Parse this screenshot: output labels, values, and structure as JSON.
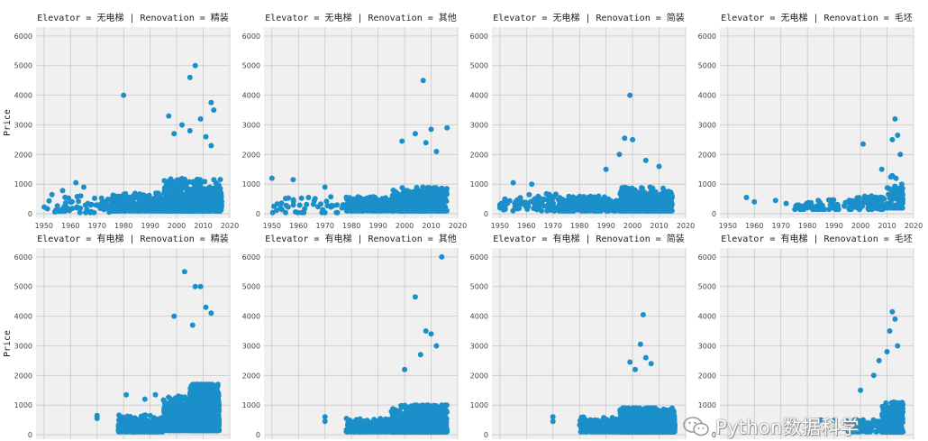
{
  "chart_data": {
    "type": "scatter",
    "point_color": "#1a8fc9",
    "background": "#f0f0f0",
    "grid": true,
    "xlim": [
      1947,
      2020
    ],
    "ylim": [
      -150,
      6300
    ],
    "xticks": [
      1950,
      1960,
      1970,
      1980,
      1990,
      2000,
      2010,
      2020
    ],
    "yticks": [
      0,
      1000,
      2000,
      3000,
      4000,
      5000,
      6000
    ],
    "ylabel": "Price",
    "panels": [
      {
        "title": "Elevator = 无电梯 | Renovation = 精装",
        "elevator": "无电梯",
        "renovation": "精装",
        "x_ticks_visible": true,
        "density": [
          [
            1950,
            1975,
            60,
            40,
            250,
            650,
            300
          ],
          [
            1975,
            1995,
            350,
            100,
            250,
            700,
            350
          ],
          [
            1995,
            2017,
            650,
            100,
            300,
            1200,
            700
          ]
        ],
        "points": [
          [
            1980,
            4000
          ],
          [
            2005,
            4600
          ],
          [
            2007,
            5000
          ],
          [
            2013,
            3750
          ],
          [
            2014,
            3500
          ],
          [
            1997,
            3300
          ],
          [
            2002,
            3000
          ],
          [
            2009,
            3200
          ],
          [
            2011,
            2600
          ],
          [
            2013,
            2300
          ],
          [
            1999,
            2700
          ],
          [
            2005,
            2800
          ],
          [
            1957,
            780
          ],
          [
            1962,
            1050
          ],
          [
            1965,
            900
          ],
          [
            1953,
            650
          ],
          [
            1972,
            400
          ]
        ]
      },
      {
        "title": "Elevator = 无电梯 | Renovation = 其他",
        "elevator": "无电梯",
        "renovation": "其他",
        "x_ticks_visible": true,
        "density": [
          [
            1950,
            1978,
            45,
            40,
            250,
            700,
            350
          ],
          [
            1978,
            1995,
            250,
            100,
            250,
            600,
            300
          ],
          [
            1995,
            2016,
            450,
            100,
            300,
            900,
            500
          ]
        ],
        "points": [
          [
            2007,
            4500
          ],
          [
            2016,
            2900
          ],
          [
            2010,
            2850
          ],
          [
            2004,
            2700
          ],
          [
            1999,
            2450
          ],
          [
            2012,
            2100
          ],
          [
            2008,
            2400
          ],
          [
            1950,
            1200
          ],
          [
            1958,
            1150
          ],
          [
            1970,
            900
          ]
        ]
      },
      {
        "title": "Elevator = 无电梯 | Renovation = 简装",
        "elevator": "无电梯",
        "renovation": "简装",
        "x_ticks_visible": true,
        "density": [
          [
            1950,
            1972,
            80,
            100,
            300,
            700,
            300
          ],
          [
            1972,
            1995,
            300,
            100,
            250,
            600,
            300
          ],
          [
            1995,
            2015,
            450,
            100,
            300,
            900,
            500
          ]
        ],
        "points": [
          [
            1999,
            4000
          ],
          [
            1997,
            2550
          ],
          [
            2000,
            2500
          ],
          [
            1995,
            2000
          ],
          [
            2005,
            1800
          ],
          [
            2010,
            1600
          ],
          [
            1990,
            1500
          ],
          [
            1955,
            1050
          ],
          [
            1962,
            1000
          ]
        ]
      },
      {
        "title": "Elevator = 无电梯 | Renovation = 毛坯",
        "elevator": "无电梯",
        "renovation": "毛坯",
        "x_ticks_visible": true,
        "density": [
          [
            1975,
            1998,
            80,
            150,
            250,
            500,
            200
          ],
          [
            1998,
            2010,
            70,
            150,
            300,
            600,
            300
          ],
          [
            2010,
            2016,
            100,
            200,
            400,
            1300,
            700
          ]
        ],
        "points": [
          [
            2013,
            3200
          ],
          [
            2001,
            2350
          ],
          [
            2012,
            2500
          ],
          [
            2014,
            2650
          ],
          [
            2015,
            2000
          ],
          [
            2008,
            1500
          ],
          [
            1957,
            550
          ],
          [
            1960,
            400
          ],
          [
            1968,
            450
          ],
          [
            1972,
            350
          ]
        ]
      },
      {
        "title": "Elevator = 有电梯 | Renovation = 精装",
        "elevator": "有电梯",
        "renovation": "精装",
        "x_ticks_visible": false,
        "density": [
          [
            1978,
            1995,
            300,
            100,
            250,
            700,
            300
          ],
          [
            1995,
            2005,
            700,
            150,
            300,
            1300,
            800
          ],
          [
            2005,
            2016,
            1400,
            150,
            300,
            1700,
            1400
          ]
        ],
        "points": [
          [
            2003,
            5500
          ],
          [
            2007,
            5000
          ],
          [
            2009,
            5000
          ],
          [
            2011,
            4300
          ],
          [
            1999,
            4000
          ],
          [
            2013,
            4100
          ],
          [
            2006,
            3700
          ],
          [
            1981,
            1350
          ],
          [
            1988,
            1200
          ],
          [
            1992,
            1350
          ],
          [
            1970,
            550
          ],
          [
            1970,
            650
          ]
        ]
      },
      {
        "title": "Elevator = 有电梯 | Renovation = 其他",
        "elevator": "有电梯",
        "renovation": "其他",
        "x_ticks_visible": false,
        "density": [
          [
            1978,
            1995,
            220,
            100,
            200,
            600,
            300
          ],
          [
            1995,
            2016,
            800,
            100,
            250,
            1000,
            700
          ]
        ],
        "points": [
          [
            2014,
            6000
          ],
          [
            2004,
            4650
          ],
          [
            2008,
            3500
          ],
          [
            2010,
            3400
          ],
          [
            2012,
            3000
          ],
          [
            2006,
            2700
          ],
          [
            2000,
            2200
          ],
          [
            1970,
            450
          ],
          [
            1970,
            600
          ]
        ]
      },
      {
        "title": "Elevator = 有电梯 | Renovation = 简装",
        "elevator": "有电梯",
        "renovation": "简装",
        "x_ticks_visible": false,
        "density": [
          [
            1980,
            1995,
            250,
            100,
            250,
            600,
            300
          ],
          [
            1995,
            2016,
            900,
            100,
            250,
            900,
            700
          ]
        ],
        "points": [
          [
            2004,
            4050
          ],
          [
            2003,
            3050
          ],
          [
            2005,
            2600
          ],
          [
            1999,
            2450
          ],
          [
            2007,
            2400
          ],
          [
            2001,
            2200
          ],
          [
            1970,
            450
          ],
          [
            1970,
            600
          ]
        ]
      },
      {
        "title": "Elevator = 有电梯 | Renovation = 毛坯",
        "elevator": "有电梯",
        "renovation": "毛坯",
        "x_ticks_visible": false,
        "density": [
          [
            1995,
            2008,
            90,
            100,
            250,
            500,
            300
          ],
          [
            2008,
            2016,
            500,
            100,
            250,
            1100,
            700
          ]
        ],
        "points": [
          [
            2012,
            4150
          ],
          [
            2013,
            3900
          ],
          [
            2011,
            3500
          ],
          [
            2014,
            3000
          ],
          [
            2010,
            2800
          ],
          [
            2007,
            2500
          ],
          [
            2005,
            2000
          ],
          [
            2000,
            1500
          ],
          [
            1985,
            500
          ],
          [
            1990,
            480
          ],
          [
            1995,
            450
          ]
        ]
      }
    ]
  },
  "watermark": {
    "text": "Python数据科学",
    "icon": "wechat-icon"
  }
}
